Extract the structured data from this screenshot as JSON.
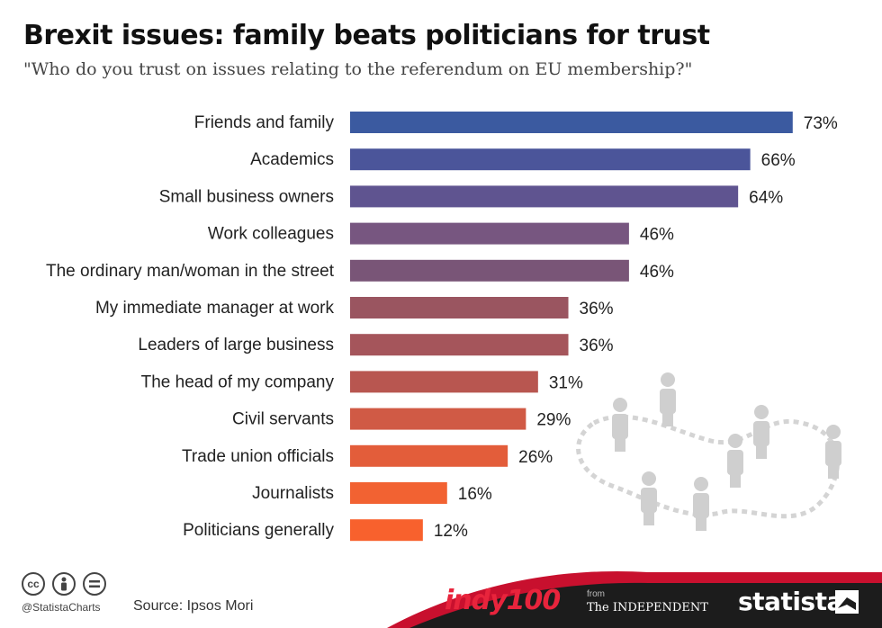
{
  "title": "Brexit issues: family beats politicians for trust",
  "subtitle": "\"Who do you trust on issues relating to the referendum on EU membership?\"",
  "chart_data": {
    "type": "bar",
    "orientation": "horizontal",
    "categories": [
      "Friends and family",
      "Academics",
      "Small business owners",
      "Work colleagues",
      "The ordinary man/woman in the street",
      "My immediate manager at work",
      "Leaders of large business",
      "The head of my company",
      "Civil servants",
      "Trade union officials",
      "Journalists",
      "Politicians generally"
    ],
    "values": [
      73,
      66,
      64,
      46,
      46,
      36,
      36,
      31,
      29,
      26,
      16,
      12
    ],
    "value_labels": [
      "73%",
      "66%",
      "64%",
      "46%",
      "46%",
      "36%",
      "36%",
      "31%",
      "29%",
      "26%",
      "16%",
      "12%"
    ],
    "colors": [
      "#3b5aa0",
      "#4b559a",
      "#5f5490",
      "#775680",
      "#795577",
      "#9a5560",
      "#a5555b",
      "#b85650",
      "#d05a45",
      "#e35d3a",
      "#f26232",
      "#f8612d"
    ],
    "xlim": [
      0,
      76
    ],
    "grid": false,
    "legend": "none"
  },
  "footer": {
    "license_icons": [
      "creative-commons-icon",
      "attribution-icon",
      "no-derivatives-icon"
    ],
    "cc_text": "cc",
    "handle": "@StatistaCharts",
    "source": "Source: Ipsos Mori",
    "indy_logo": "indy100",
    "from_text": "from",
    "independent_logo": "The INDEPENDENT",
    "statista_logo": "statista"
  },
  "colors": {
    "banner_dark": "#1c1c1c",
    "banner_red": "#c8102e",
    "decoration": "#d8d8d8"
  }
}
